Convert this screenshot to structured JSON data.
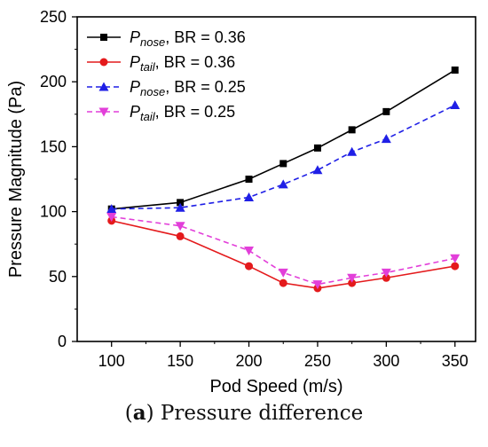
{
  "caption": {
    "label": "a",
    "text": "Pressure difference"
  },
  "chart_data": {
    "type": "line",
    "xlabel": "Pod Speed (m/s)",
    "ylabel": "Pressure Magnitude (Pa)",
    "xlim": [
      75,
      365
    ],
    "ylim": [
      0,
      250
    ],
    "xticks": [
      100,
      150,
      200,
      250,
      300,
      350
    ],
    "yticks": [
      0,
      50,
      100,
      150,
      200,
      250
    ],
    "grid": false,
    "legend_position": "top-left",
    "x": [
      100,
      150,
      200,
      225,
      250,
      275,
      300,
      350
    ],
    "series": [
      {
        "name": "P_nose, BR = 0.36",
        "legend_sub": "nose",
        "legend_rest": ", BR = 0.36",
        "color": "#000000",
        "marker": "square",
        "dash": "solid",
        "values": [
          102,
          107,
          125,
          137,
          149,
          163,
          177,
          209
        ]
      },
      {
        "name": "P_tail, BR = 0.36",
        "legend_sub": "tail",
        "legend_rest": ", BR = 0.36",
        "color": "#e41a1c",
        "marker": "circle",
        "dash": "solid",
        "values": [
          93,
          81,
          58,
          45,
          41,
          45,
          49,
          58
        ]
      },
      {
        "name": "P_nose, BR = 0.25",
        "legend_sub": "nose",
        "legend_rest": ", BR = 0.25",
        "color": "#1f1fe6",
        "marker": "triangle-up",
        "dash": "dashed",
        "values": [
          102,
          103,
          111,
          121,
          132,
          146,
          156,
          182
        ]
      },
      {
        "name": "P_tail, BR = 0.25",
        "legend_sub": "tail",
        "legend_rest": ", BR = 0.25",
        "color": "#e23fd9",
        "marker": "triangle-down",
        "dash": "dashed",
        "values": [
          96,
          89,
          70,
          53,
          44,
          49,
          53,
          64
        ]
      }
    ]
  }
}
